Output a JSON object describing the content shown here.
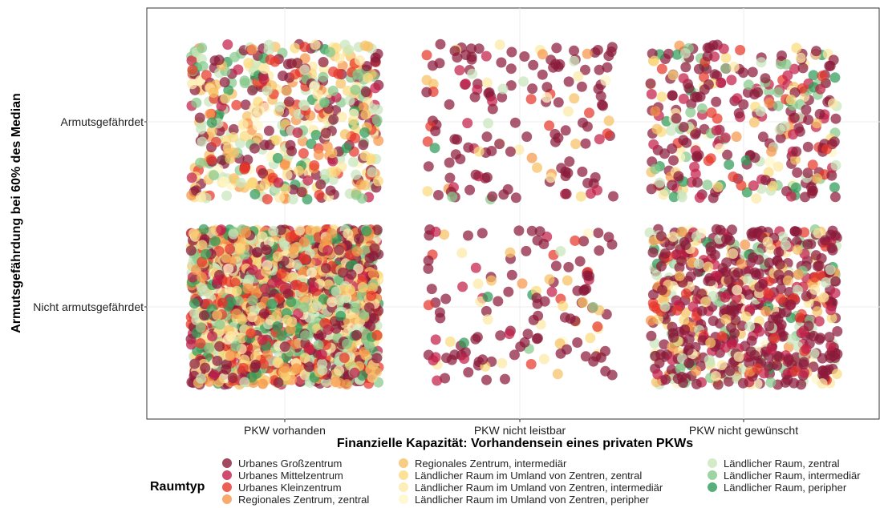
{
  "chart_data": {
    "type": "scatter",
    "subtype": "jitter",
    "xlabel": "Finanzielle Kapazität: Vorhandensein eines privaten PKWs",
    "ylabel": "Armutsgefährdung bei 60% des Median",
    "x_categories": [
      "PKW vorhanden",
      "PKW nicht leistbar",
      "PKW nicht gewünscht"
    ],
    "y_categories": [
      "Nicht armutsgefährdet",
      "Armutsgefährdet"
    ],
    "grid": true,
    "legend": {
      "title": "Raumtyp",
      "placement": "bottom",
      "entries": [
        {
          "label": "Urbanes Großzentrum",
          "color": "#8b1a3a"
        },
        {
          "label": "Urbanes Mittelzentrum",
          "color": "#c41e4a"
        },
        {
          "label": "Urbanes Kleinzentrum",
          "color": "#e8372a"
        },
        {
          "label": "Regionales Zentrum, zentral",
          "color": "#f7954a"
        },
        {
          "label": "Regionales Zentrum, intermediär",
          "color": "#f6c064"
        },
        {
          "label": "Ländlicher Raum im Umland von Zentren, zentral",
          "color": "#fbd97d"
        },
        {
          "label": "Ländlicher Raum im Umland von Zentren, intermediär",
          "color": "#fde9a6"
        },
        {
          "label": "Ländlicher Raum im Umland von Zentren, peripher",
          "color": "#fff6c8"
        },
        {
          "label": "Ländlicher Raum, zentral",
          "color": "#c9e6bd"
        },
        {
          "label": "Ländlicher Raum, intermediär",
          "color": "#86c98a"
        },
        {
          "label": "Ländlicher Raum, peripher",
          "color": "#2f9b57"
        }
      ]
    },
    "groups": [
      {
        "x": "PKW vorhanden",
        "y": "Armutsgefährdet",
        "n": 520,
        "weights": [
          22,
          6,
          8,
          7,
          9,
          9,
          6,
          5,
          13,
          9,
          6
        ]
      },
      {
        "x": "PKW nicht leistbar",
        "y": "Armutsgefährdet",
        "n": 160,
        "weights": [
          62,
          9,
          6,
          3,
          4,
          5,
          4,
          2,
          3,
          1,
          1
        ]
      },
      {
        "x": "PKW nicht gewünscht",
        "y": "Armutsgefährdet",
        "n": 330,
        "weights": [
          42,
          10,
          6,
          3,
          4,
          5,
          4,
          3,
          10,
          7,
          6
        ]
      },
      {
        "x": "PKW vorhanden",
        "y": "Nicht armutsgefährdet",
        "n": 2000,
        "weights": [
          20,
          8,
          10,
          7,
          9,
          8,
          7,
          5,
          10,
          9,
          7
        ]
      },
      {
        "x": "PKW nicht leistbar",
        "y": "Nicht armutsgefährdet",
        "n": 140,
        "weights": [
          62,
          8,
          5,
          3,
          5,
          6,
          5,
          2,
          2,
          1,
          1
        ]
      },
      {
        "x": "PKW nicht gewünscht",
        "y": "Nicht armutsgefährdet",
        "n": 720,
        "weights": [
          50,
          10,
          6,
          3,
          4,
          4,
          4,
          3,
          8,
          5,
          3
        ]
      }
    ]
  }
}
